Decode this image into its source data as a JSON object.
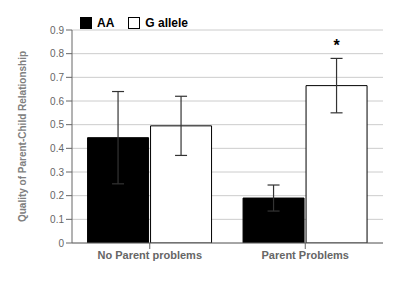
{
  "chart_data": {
    "type": "bar",
    "categories": [
      "No Parent problems",
      "Parent Problems"
    ],
    "series": [
      {
        "name": "AA",
        "color": "#000000",
        "values": [
          0.445,
          0.19
        ],
        "errors": [
          0.195,
          0.055
        ]
      },
      {
        "name": "G allele",
        "color": "#ffffff",
        "values": [
          0.495,
          0.665
        ],
        "errors": [
          0.125,
          0.115
        ]
      }
    ],
    "ylabel": "Quality of Parent-Child Relationship",
    "ylim": [
      0,
      0.9
    ],
    "yticks": [
      0,
      0.1,
      0.2,
      0.3,
      0.4,
      0.5,
      0.6,
      0.7,
      0.8,
      0.9
    ],
    "grid": true,
    "legend": "upper left",
    "annotations": [
      {
        "text": "*",
        "category": "Parent Problems",
        "series": "G allele",
        "y": 0.81
      }
    ]
  }
}
